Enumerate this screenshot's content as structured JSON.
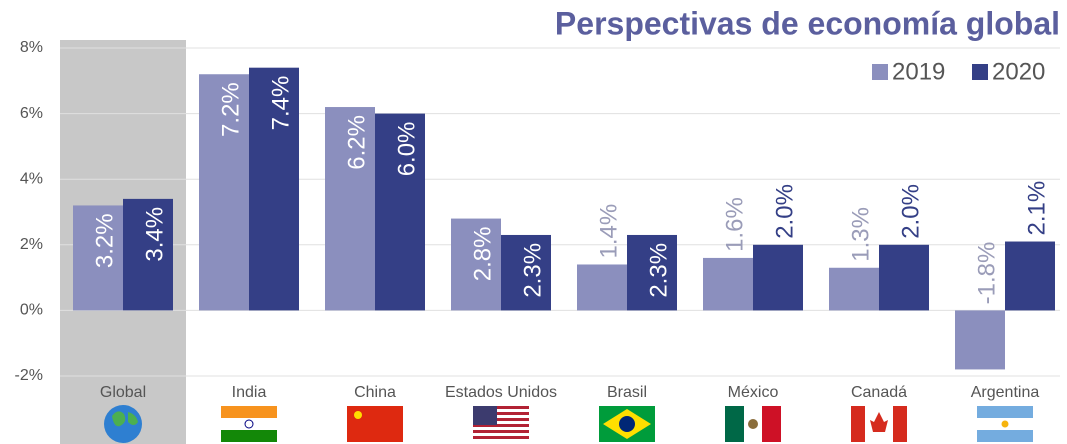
{
  "chart_data": {
    "type": "bar",
    "title": "Perspectivas de economía global",
    "categories": [
      "Global",
      "India",
      "China",
      "Estados Unidos",
      "Brasil",
      "México",
      "Canadá",
      "Argentina"
    ],
    "series": [
      {
        "name": "2019",
        "color": "#8b8fbe",
        "values": [
          3.2,
          7.2,
          6.2,
          2.8,
          1.4,
          1.6,
          1.3,
          -1.8
        ],
        "value_labels": [
          "3.2%",
          "7.2%",
          "6.2%",
          "2.8%",
          "1.4%",
          "1.6%",
          "1.3%",
          "-1.8%"
        ]
      },
      {
        "name": "2020",
        "color": "#343f86",
        "values": [
          3.4,
          7.4,
          6.0,
          2.3,
          2.3,
          2.0,
          2.0,
          2.1
        ],
        "value_labels": [
          "3.4%",
          "7.4%",
          "6.0%",
          "2.3%",
          "2.3%",
          "2.0%",
          "2.0%",
          "2.1%"
        ]
      }
    ],
    "ylim": [
      -2,
      8
    ],
    "yticks": [
      {
        "value": -2,
        "label": "-2%"
      },
      {
        "value": 0,
        "label": "0%"
      },
      {
        "value": 2,
        "label": "2%"
      },
      {
        "value": 4,
        "label": "4%"
      },
      {
        "value": 6,
        "label": "6%"
      },
      {
        "value": 8,
        "label": "8%"
      }
    ],
    "grid": true,
    "legend": "top-right"
  }
}
